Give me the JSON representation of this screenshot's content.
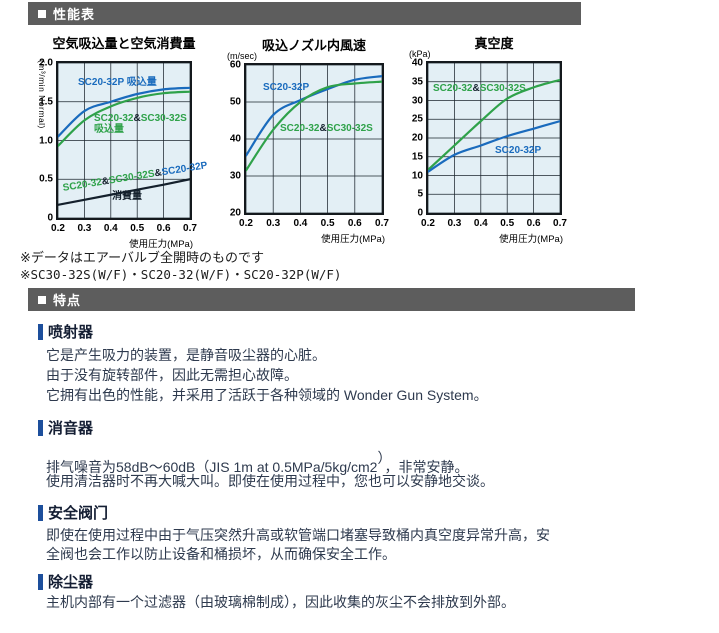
{
  "sections": {
    "performance": {
      "label": "性能表"
    },
    "features": {
      "label": "特点"
    }
  },
  "colors": {
    "accent_blue": "#1a6bbd",
    "accent_green": "#2fa24a",
    "line_black": "#14202c",
    "header_gray": "#5d5d5d",
    "heading_bar_blue": "#1d4f9c",
    "plot_bg": "#e3eff5"
  },
  "notes": [
    "※データはエアーバルブ全開時のものです",
    "※SC30-32S(W/F)・SC20-32(W/F)・SC20-32P(W/F)"
  ],
  "chart_data": [
    {
      "type": "line",
      "title": "空気吸込量と空気消費量",
      "unit": "(m³/min Normal)",
      "xlabel": "使用圧力(MPa)",
      "xlim": [
        0.2,
        0.7
      ],
      "ylim": [
        0,
        2
      ],
      "x": [
        0.2,
        0.3,
        0.4,
        0.5,
        0.6,
        0.7
      ],
      "xtick_labels": [
        "0.2",
        "0.3",
        "0.4",
        "0.5",
        "0.6",
        "0.7"
      ],
      "yticks": [
        0,
        0.5,
        1.0,
        1.5,
        2.0
      ],
      "ytick_labels": [
        "0",
        "0.5",
        "1.0",
        "1.5",
        "2.0"
      ],
      "grid": true,
      "series": [
        {
          "name": "SC20-32P 吸込量",
          "color": "#1a6bbd",
          "values": [
            1.05,
            1.38,
            1.5,
            1.6,
            1.66,
            1.68
          ]
        },
        {
          "name": "SC20-32&SC30-32S 吸込量",
          "color": "#2fa24a",
          "values": [
            0.93,
            1.26,
            1.44,
            1.55,
            1.61,
            1.63
          ]
        },
        {
          "name": "SC20-32&SC30-32S&SC20-32P 消費量",
          "color": "#14202c",
          "straight": true,
          "values": [
            0.17,
            0.235,
            0.3,
            0.365,
            0.43,
            0.5
          ]
        }
      ],
      "labels": [
        {
          "x": 20,
          "y": 14,
          "lines": [
            [
              {
                "t": "SC20-32P 吸込量",
                "c": "#1a6bbd"
              }
            ]
          ]
        },
        {
          "x": 36,
          "y": 50,
          "lines": [
            [
              {
                "t": "SC20-32",
                "c": "#2fa24a"
              },
              {
                "t": "&",
                "c": "#14202c"
              },
              {
                "t": "SC30-32S",
                "c": "#2fa24a"
              }
            ],
            [
              {
                "t": "吸込量",
                "c": "#2fa24a"
              }
            ]
          ]
        },
        {
          "x": 4,
          "y": 120,
          "rotate": -9,
          "lines": [
            [
              {
                "t": "SC20-32",
                "c": "#2fa24a"
              },
              {
                "t": "&",
                "c": "#14202c"
              },
              {
                "t": "SC30-32S",
                "c": "#2fa24a"
              },
              {
                "t": "&",
                "c": "#14202c"
              },
              {
                "t": "SC20-32P",
                "c": "#1a6bbd"
              }
            ]
          ]
        },
        {
          "x": 54,
          "y": 128,
          "lines": [
            [
              {
                "t": "消費量",
                "c": "#14202c"
              }
            ]
          ]
        }
      ]
    },
    {
      "type": "line",
      "title": "吸込ノズル内風速",
      "unit": "(m/sec)",
      "xlabel": "使用圧力(MPa)",
      "xlim": [
        0.2,
        0.7
      ],
      "ylim": [
        20,
        60
      ],
      "x": [
        0.2,
        0.3,
        0.4,
        0.5,
        0.6,
        0.7
      ],
      "xtick_labels": [
        "0.2",
        "0.3",
        "0.4",
        "0.5",
        "0.6",
        "0.7"
      ],
      "yticks": [
        20,
        30,
        40,
        50,
        60
      ],
      "ytick_labels": [
        "20",
        "30",
        "40",
        "50",
        "60"
      ],
      "grid": true,
      "series": [
        {
          "name": "SC20-32P",
          "color": "#1a6bbd",
          "values": [
            35.5,
            46.5,
            50.5,
            53.5,
            56,
            57
          ]
        },
        {
          "name": "SC20-32&SC30-32S",
          "color": "#2fa24a",
          "values": [
            31.5,
            42.5,
            50,
            54,
            55,
            55.5
          ]
        }
      ],
      "labels": [
        {
          "x": 17,
          "y": 17,
          "lines": [
            [
              {
                "t": "SC20-32P",
                "c": "#1a6bbd"
              }
            ]
          ]
        },
        {
          "x": 34,
          "y": 58,
          "lines": [
            [
              {
                "t": "SC20-32",
                "c": "#2fa24a"
              },
              {
                "t": "&",
                "c": "#14202c"
              },
              {
                "t": "SC30-32S",
                "c": "#2fa24a"
              }
            ]
          ]
        }
      ]
    },
    {
      "type": "line",
      "title": "真空度",
      "unit": "(kPa)",
      "xlabel": "使用圧力(MPa)",
      "xlim": [
        0.2,
        0.7
      ],
      "ylim": [
        0,
        40
      ],
      "x": [
        0.2,
        0.3,
        0.4,
        0.5,
        0.6,
        0.7
      ],
      "xtick_labels": [
        "0.2",
        "0.3",
        "0.4",
        "0.5",
        "0.6",
        "0.7"
      ],
      "yticks": [
        0,
        5,
        10,
        15,
        20,
        25,
        30,
        35,
        40
      ],
      "ytick_labels": [
        "0",
        "5",
        "10",
        "15",
        "20",
        "25",
        "30",
        "35",
        "40"
      ],
      "grid": true,
      "series": [
        {
          "name": "SC20-32&SC30-32S",
          "color": "#2fa24a",
          "values": [
            11.5,
            18,
            24.5,
            30.5,
            33.5,
            35.5
          ]
        },
        {
          "name": "SC20-32P",
          "color": "#1a6bbd",
          "values": [
            11,
            15.5,
            18,
            20.5,
            22.5,
            24.5
          ]
        }
      ],
      "labels": [
        {
          "x": 5,
          "y": 20,
          "lines": [
            [
              {
                "t": "SC20-32",
                "c": "#2fa24a"
              },
              {
                "t": "&",
                "c": "#14202c"
              },
              {
                "t": "SC30-32S",
                "c": "#2fa24a"
              }
            ]
          ]
        },
        {
          "x": 67,
          "y": 82,
          "lines": [
            [
              {
                "t": "SC20-32P",
                "c": "#1a6bbd"
              }
            ]
          ]
        }
      ]
    }
  ],
  "features": [
    {
      "title": "喷射器",
      "lines": [
        "它是产生吸力的装置，是静音吸尘器的心脏。",
        "由于没有旋转部件，因此无需担心故障。",
        "它拥有出色的性能，并采用了活跃于各种领域的 Wonder Gun System。"
      ]
    },
    {
      "title": "消音器",
      "line1_pre": "排气噪音为58dB～60dB（JIS 1m at 0.5MPa/5kg/cm2",
      "line1_sup": "）",
      "line1_post": "，非常安静。",
      "line2": "使用清洁器时不再大喊大叫。即使在使用过程中，您也可以安静地交谈。"
    },
    {
      "title": "安全阀门",
      "lines": [
        "即使在使用过程中由于气压突然升高或软管端口堵塞导致桶内真空度异常升高，安",
        "全阀也会工作以防止设备和桶损坏，从而确保安全工作。"
      ]
    },
    {
      "title": "除尘器",
      "lines": [
        "主机内部有一个过滤器（由玻璃棉制成），因此收集的灰尘不会排放到外部。"
      ]
    }
  ]
}
